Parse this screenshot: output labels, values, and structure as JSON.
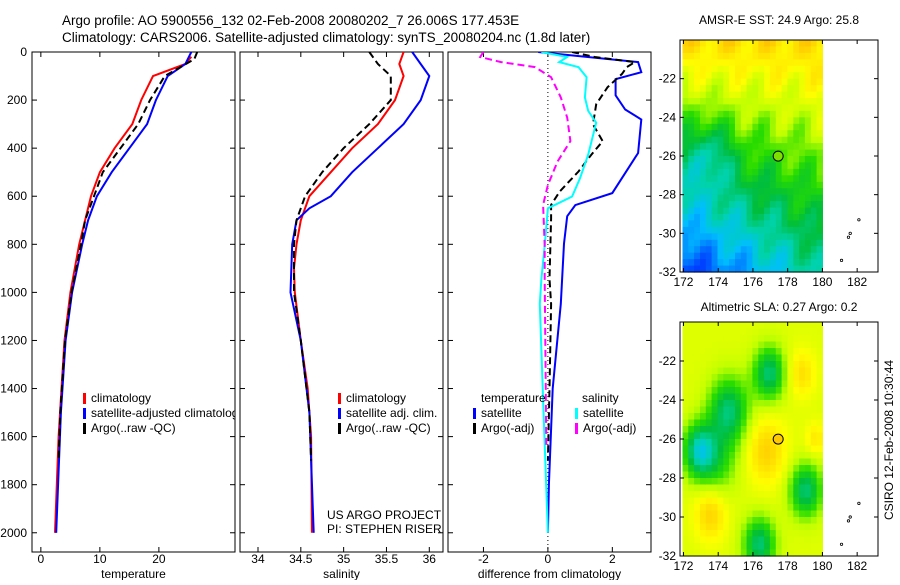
{
  "title_line1": "Argo profile: AO 5900556_132 02-Feb-2008 20080202_7 26.006S 177.453E",
  "title_line2": "Climatology: CARS2006. Satellite-adjusted climatology: synTS_20080204.nc (1.8d later)",
  "footer_credit": "CSIRO 12-Feb-2008 10:30:44",
  "project_lines": [
    "US ARGO PROJECT",
    "PI: STEPHEN RISER"
  ],
  "colors": {
    "climatology": "#ff0000",
    "satellite": "#0000ff",
    "argo": "#000000",
    "sal_satellite": "#00ffff",
    "sal_argo": "#ff00ff"
  },
  "chart_data": [
    {
      "type": "line",
      "xlabel": "temperature",
      "ylabel": "",
      "xlim": [
        -1.5,
        32.9
      ],
      "ylim": [
        0,
        2080
      ],
      "y_inverted": true,
      "xticks": [
        0,
        10,
        20
      ],
      "yticks": [
        0,
        200,
        400,
        600,
        800,
        1000,
        1200,
        1400,
        1600,
        1800,
        2000
      ],
      "legend": [
        "climatology",
        "satellite-adjusted climatology",
        "Argo(..raw -QC)"
      ],
      "series": [
        {
          "name": "climatology",
          "color": "#ff0000",
          "dash": false,
          "depth": [
            20,
            50,
            100,
            200,
            300,
            400,
            500,
            600,
            700,
            800,
            1000,
            1200,
            1400,
            1600,
            2000
          ],
          "values": [
            25.5,
            24.5,
            19,
            17,
            15.5,
            12.5,
            10,
            8.5,
            7.5,
            6.5,
            5,
            4,
            3.5,
            3,
            2.4
          ]
        },
        {
          "name": "satellite-adjusted climatology",
          "color": "#0000ff",
          "dash": false,
          "depth": [
            0,
            50,
            100,
            200,
            300,
            400,
            500,
            600,
            700,
            800,
            1000,
            1200,
            1500,
            2000
          ],
          "values": [
            25.5,
            24.5,
            21.5,
            19.5,
            18,
            15,
            12,
            9.5,
            8,
            7,
            5.3,
            4.2,
            3.4,
            2.6
          ]
        },
        {
          "name": "Argo(..raw -QC)",
          "color": "#000000",
          "dash": true,
          "depth": [
            0,
            30,
            100,
            200,
            300,
            400,
            500,
            600,
            700,
            800,
            1000,
            1200,
            1500,
            1700
          ],
          "values": [
            26.5,
            26,
            21,
            18.5,
            16.5,
            13.5,
            10.5,
            9,
            7.5,
            6.8,
            5.2,
            4.1,
            3.3,
            3.0
          ]
        }
      ]
    },
    {
      "type": "line",
      "xlabel": "salinity",
      "xlim": [
        33.79,
        36.16
      ],
      "ylim": [
        0,
        2080
      ],
      "y_inverted": true,
      "xticks": [
        34,
        34.5,
        35,
        35.5,
        36
      ],
      "legend": [
        "climatology",
        "satellite adj. clim.",
        "Argo(..raw -QC)"
      ],
      "series": [
        {
          "name": "climatology",
          "color": "#ff0000",
          "dash": false,
          "depth": [
            0,
            50,
            100,
            200,
            300,
            400,
            500,
            600,
            700,
            800,
            900,
            1000,
            1200,
            1400,
            1600,
            2000
          ],
          "values": [
            35.7,
            35.65,
            35.7,
            35.6,
            35.4,
            35.1,
            34.85,
            34.6,
            34.5,
            34.45,
            34.42,
            34.43,
            34.5,
            34.58,
            34.62,
            34.63
          ]
        },
        {
          "name": "satellite adj. clim.",
          "color": "#0000ff",
          "dash": false,
          "depth": [
            0,
            50,
            100,
            200,
            300,
            400,
            500,
            600,
            650,
            700,
            800,
            1000,
            1200,
            1500,
            2000
          ],
          "values": [
            35.8,
            35.9,
            36.0,
            35.9,
            35.7,
            35.4,
            35.1,
            34.85,
            34.6,
            34.45,
            34.4,
            34.38,
            34.5,
            34.6,
            34.65
          ]
        },
        {
          "name": "Argo(..raw -QC)",
          "color": "#000000",
          "dash": true,
          "depth": [
            0,
            50,
            100,
            200,
            300,
            400,
            500,
            600,
            700,
            800,
            1000,
            1200,
            1500,
            1700
          ],
          "values": [
            35.3,
            35.4,
            35.55,
            35.55,
            35.3,
            35.0,
            34.75,
            34.55,
            34.45,
            34.42,
            34.42,
            34.5,
            34.6,
            34.62
          ]
        }
      ]
    },
    {
      "type": "line",
      "xlabel": "difference from climatology",
      "xlim": [
        -3.1,
        3.2
      ],
      "ylim": [
        0,
        2080
      ],
      "y_inverted": true,
      "xticks": [
        -2,
        0,
        2
      ],
      "legend_headers": [
        "temperature",
        "salinity"
      ],
      "legend": [
        "satellite",
        "Argo(-adj)",
        "satellite",
        "Argo(-adj)"
      ],
      "series": [
        {
          "name": "temperature satellite",
          "color": "#0000ff",
          "dash": false,
          "depth": [
            0,
            42,
            84,
            113,
            180,
            239,
            281,
            420,
            587,
            637,
            683,
            797,
            1048,
            1400,
            1800,
            2000
          ],
          "values": [
            -0.3,
            2.8,
            2.9,
            2.1,
            2.1,
            2.4,
            2.9,
            2.8,
            2.0,
            0.85,
            0.6,
            0.5,
            0.4,
            0.15,
            0.03,
            0
          ]
        },
        {
          "name": "temperature Argo(-adj)",
          "color": "#000000",
          "dash": true,
          "depth": [
            0,
            21,
            42,
            63,
            91,
            147,
            217,
            301,
            371,
            427,
            497,
            580,
            636,
            692,
            944,
            1048,
            1400,
            1700
          ],
          "values": [
            0.75,
            1.45,
            2.7,
            2.45,
            2.3,
            1.85,
            1.5,
            1.4,
            1.7,
            1.35,
            0.95,
            0.37,
            0.1,
            0.1,
            0.05,
            0.1,
            0.05,
            0
          ]
        },
        {
          "name": "salinity satellite",
          "color": "#00ffff",
          "dash": false,
          "depth": [
            0,
            21,
            42,
            63,
            105,
            189,
            245,
            294,
            427,
            524,
            601,
            650,
            804,
            944,
            1048,
            1446,
            2000
          ],
          "values": [
            -0.2,
            0.6,
            0.35,
            0.95,
            1.2,
            1.15,
            1.25,
            1.5,
            1.25,
            1.0,
            0.75,
            0,
            -0.1,
            -0.2,
            -0.25,
            -0.15,
            0
          ]
        },
        {
          "name": "salinity Argo(-adj)",
          "color": "#ff00ff",
          "dash": true,
          "depth": [
            0,
            21,
            42,
            63,
            105,
            189,
            273,
            371,
            455,
            553,
            636,
            804,
            944,
            1200,
            1650
          ],
          "values": [
            -2.0,
            -2.1,
            -1.45,
            -0.4,
            0.1,
            0.4,
            0.6,
            0.7,
            0.3,
            0,
            -0.15,
            -0.1,
            -0.1,
            -0.08,
            -0.05
          ]
        }
      ]
    },
    {
      "type": "heatmap",
      "title": "AMSR-E SST: 24.9 Argo: 25.8",
      "xlim": [
        171.8,
        183.2
      ],
      "ylim": [
        -32,
        -20
      ],
      "xticks": [
        172,
        174,
        176,
        178,
        180,
        182
      ],
      "yticks": [
        -22,
        -24,
        -26,
        -28,
        -30,
        -32
      ],
      "data_extent_lon": [
        172,
        180
      ],
      "argo_position": [
        177.453,
        -26.006
      ]
    },
    {
      "type": "heatmap",
      "title": "Altimetric SLA: 0.27 Argo: 0.2",
      "xlim": [
        171.8,
        183.2
      ],
      "ylim": [
        -32,
        -20
      ],
      "xticks": [
        172,
        174,
        176,
        178,
        180,
        182
      ],
      "yticks": [
        -22,
        -24,
        -26,
        -28,
        -30,
        -32
      ],
      "data_extent_lon": [
        172,
        180
      ],
      "argo_position": [
        177.453,
        -26.006
      ]
    }
  ]
}
